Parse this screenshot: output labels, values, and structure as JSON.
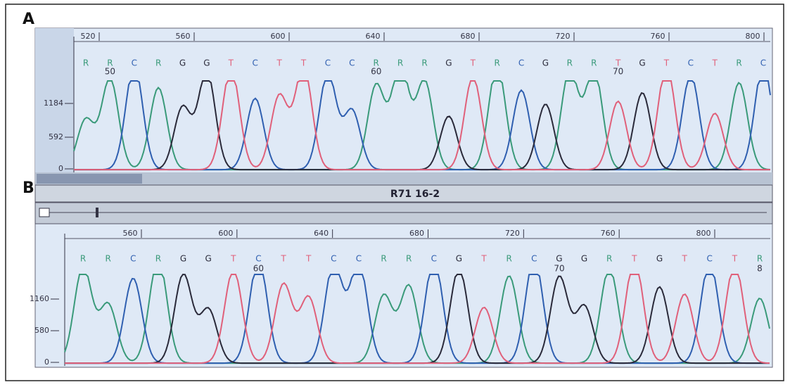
{
  "panels": [
    {
      "label": "A",
      "ruler": [
        "520",
        "560",
        "600",
        "640",
        "680",
        "720",
        "760",
        "800"
      ],
      "bases": [
        "R",
        "R",
        "C",
        "R",
        "G",
        "G",
        "T",
        "C",
        "T",
        "T",
        "C",
        "C",
        "R",
        "R",
        "R",
        "G",
        "T",
        "R",
        "C",
        "G",
        "R",
        "R",
        "T",
        "G",
        "T",
        "C",
        "T",
        "R",
        "C"
      ],
      "positions": [
        "50",
        "60",
        "70"
      ],
      "yaxis": [
        "1184",
        "592",
        "0"
      ]
    },
    {
      "label": "B",
      "title": "R71 16-2",
      "ruler": [
        "560",
        "600",
        "640",
        "680",
        "720",
        "760",
        "800"
      ],
      "bases": [
        "R",
        "R",
        "C",
        "R",
        "G",
        "G",
        "T",
        "C",
        "T",
        "T",
        "C",
        "C",
        "R",
        "R",
        "C",
        "G",
        "T",
        "R",
        "C",
        "G",
        "G",
        "R",
        "T",
        "G",
        "T",
        "C",
        "T",
        "R"
      ],
      "positions": [
        "60",
        "70",
        "8"
      ],
      "yaxis": [
        "1160",
        "580",
        "0"
      ]
    }
  ]
}
